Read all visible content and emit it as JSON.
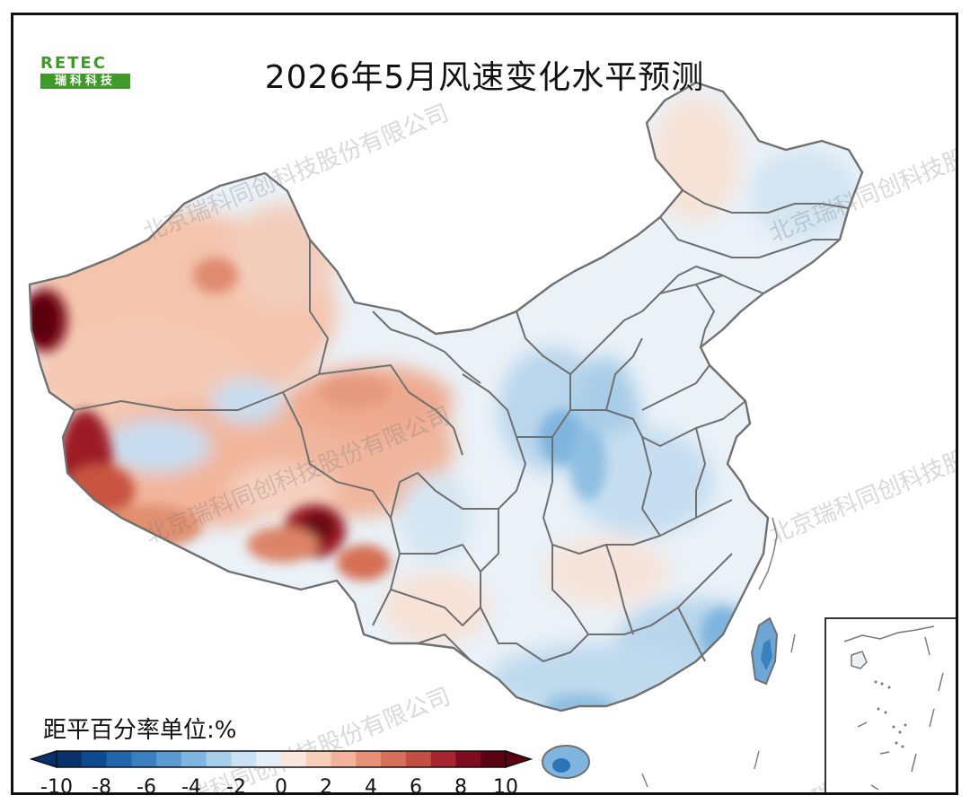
{
  "title": "2026年5月风速变化水平预测",
  "logo": {
    "top_text": "RETEC",
    "bottom_text": "瑞科科技"
  },
  "watermark_text": "北京瑞科同创科技股份有限公司",
  "colorbar": {
    "unit_label": "距平百分率单位:%",
    "min": -10,
    "max": 10,
    "tick_labels": [
      "-10",
      "-8",
      "-6",
      "-4",
      "-2",
      "0",
      "2",
      "4",
      "6",
      "8",
      "10"
    ],
    "colors": [
      "#08306b",
      "#0d4a8f",
      "#2166ac",
      "#3a7fc0",
      "#5b9bd1",
      "#7fb5de",
      "#a6cde9",
      "#c9e1f2",
      "#e6eff7",
      "#f9e6dc",
      "#f6cfbb",
      "#f2b29b",
      "#e7917a",
      "#d6705c",
      "#c44e44",
      "#a7262f",
      "#7f0d1f",
      "#5a0010"
    ]
  },
  "map_colors": {
    "border": "#6f6f6f",
    "neutral": "#eaf1f7",
    "light_warm": "#f9e4d8",
    "warm": "#efae92",
    "hot": "#c75a47",
    "very_hot": "#7b0f1d",
    "light_cool": "#cfe1ef",
    "cool": "#8fbfe1",
    "cold": "#2d73b8"
  }
}
